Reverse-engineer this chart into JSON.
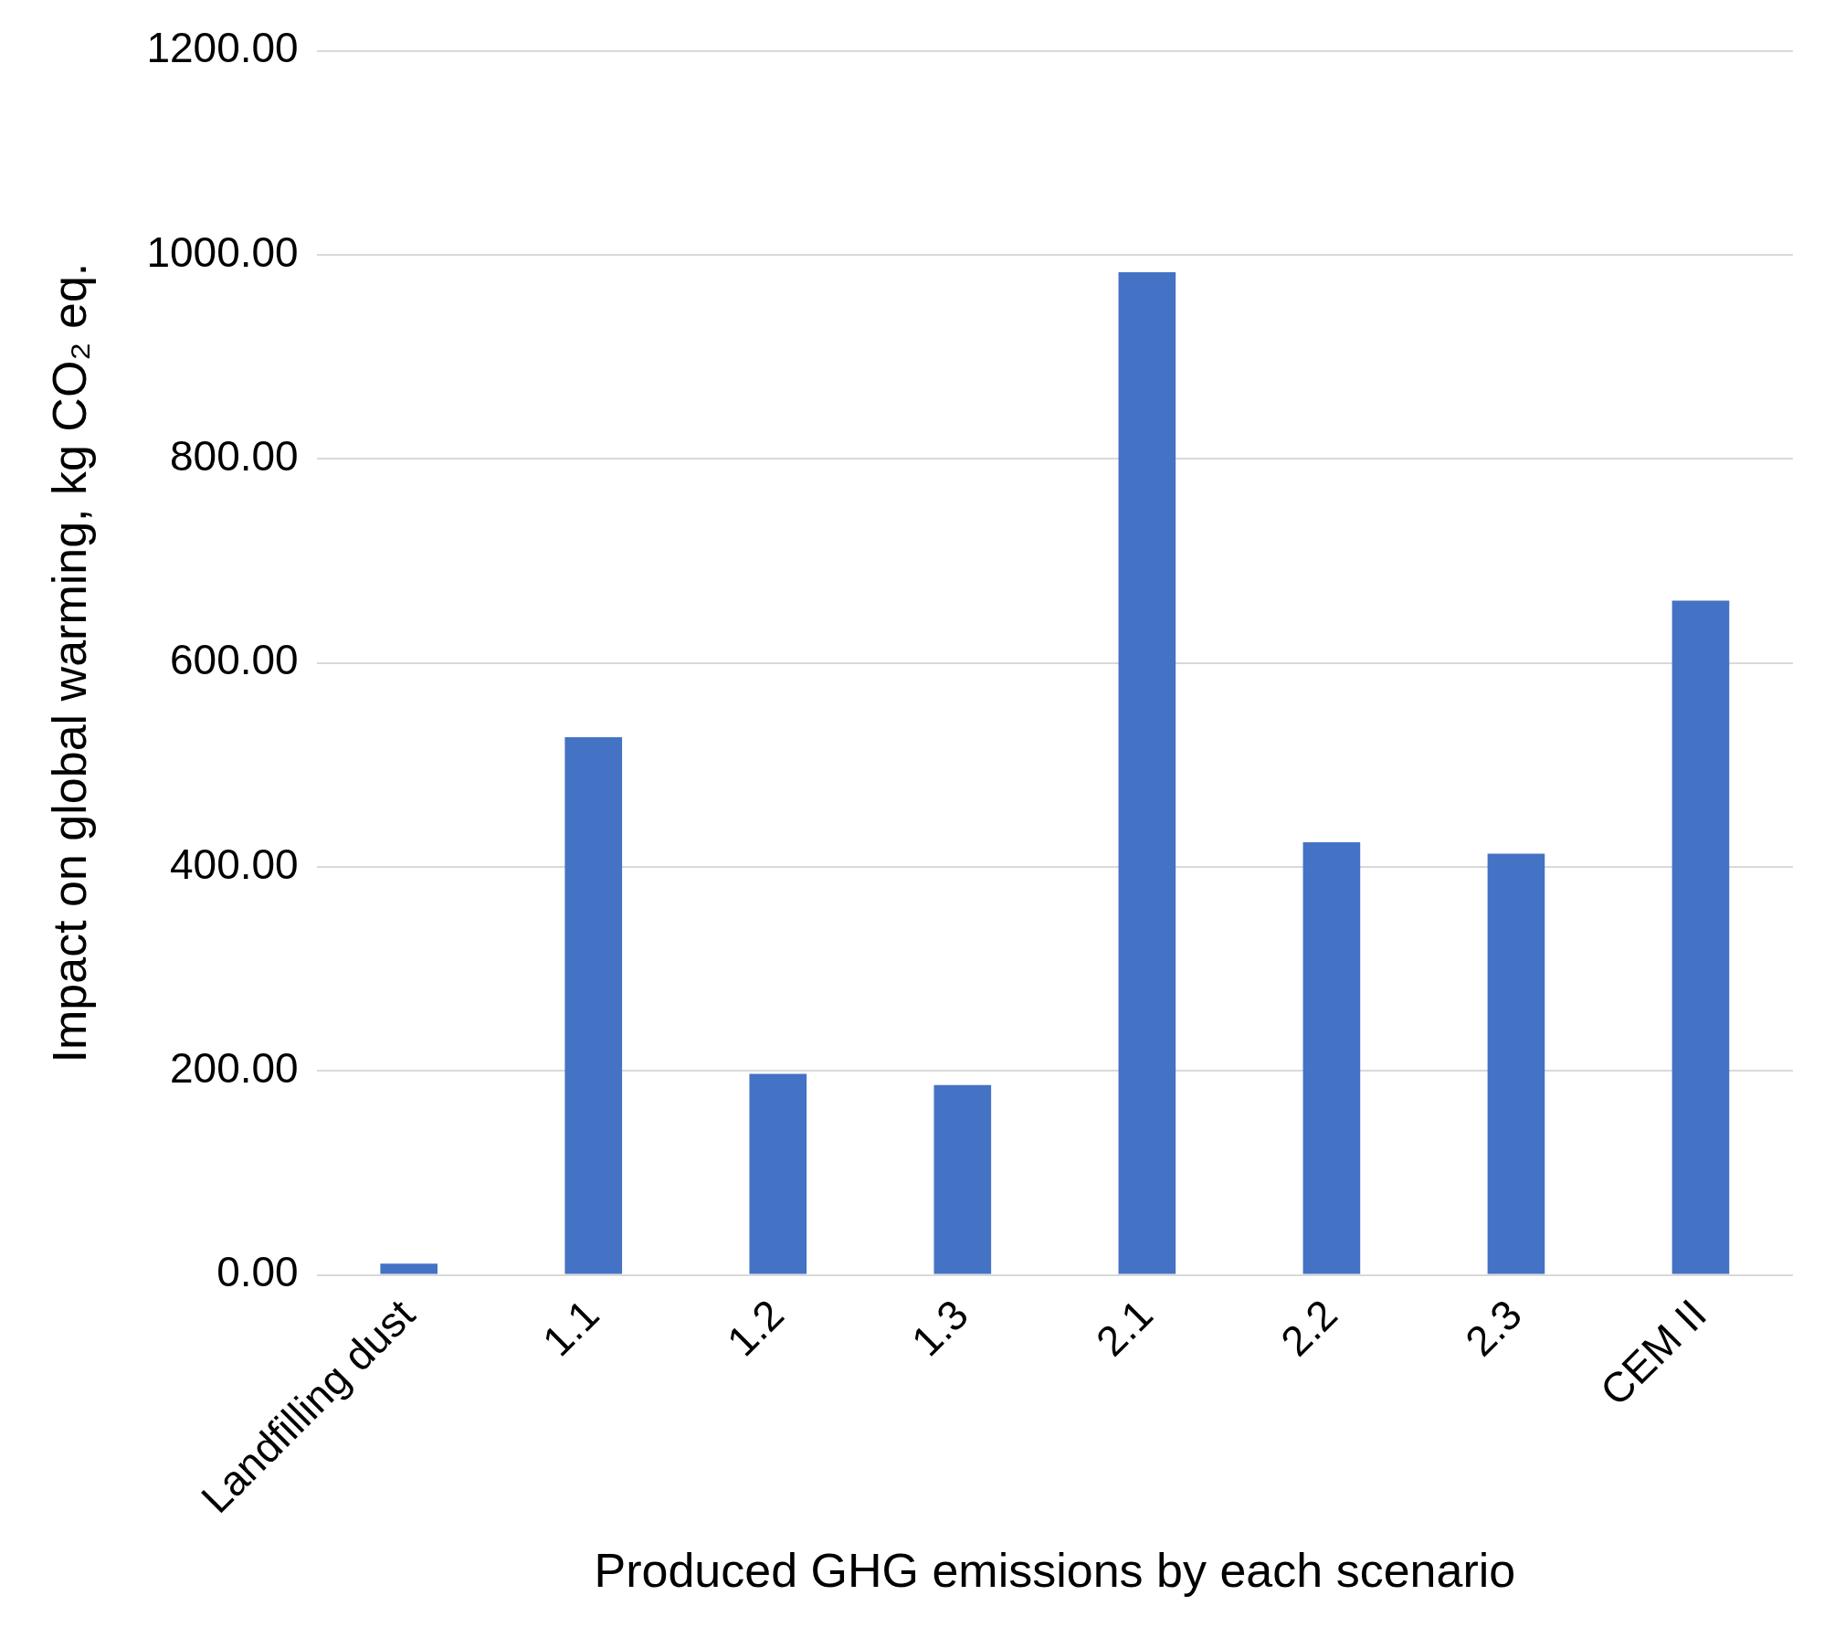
{
  "chart_data": {
    "type": "bar",
    "xlabel": "Produced GHG emissions by each scenario",
    "ylabel": "Impact on global warming, kg CO₂ eq.",
    "categories": [
      "Landfilling dust",
      "1.1",
      "1.2",
      "1.3",
      "2.1",
      "2.2",
      "2.3",
      "CEM II"
    ],
    "values": [
      11,
      527,
      197,
      186,
      983,
      424,
      413,
      661
    ],
    "color": "#4472c4",
    "ylim": [
      0,
      1200
    ],
    "yticks": [
      {
        "value": 0,
        "label": "0.00"
      },
      {
        "value": 200,
        "label": "200.00"
      },
      {
        "value": 400,
        "label": "400.00"
      },
      {
        "value": 600,
        "label": "600.00"
      },
      {
        "value": 800,
        "label": "800.00"
      },
      {
        "value": 1000,
        "label": "1000.00"
      },
      {
        "value": 1200,
        "label": "1200.00"
      }
    ],
    "grid": "y",
    "legend": false
  }
}
